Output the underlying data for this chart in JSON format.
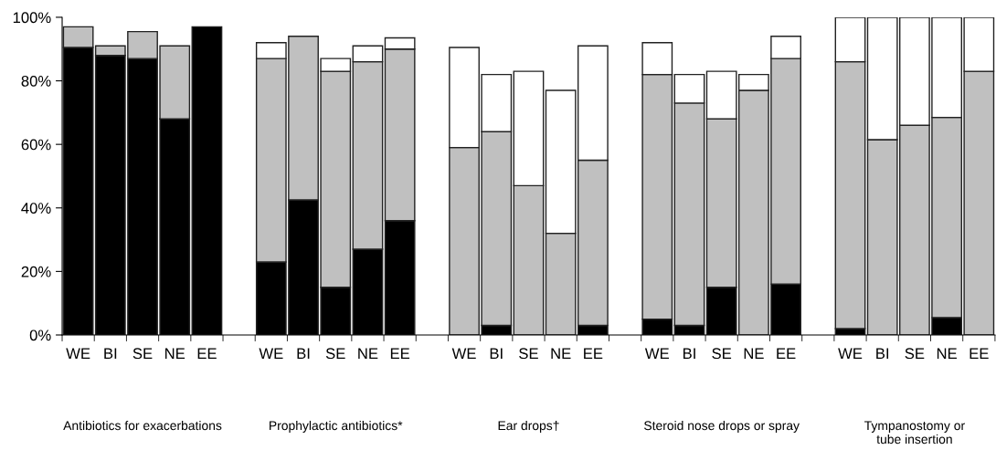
{
  "chart_data": {
    "type": "bar",
    "stacked": true,
    "categories": [
      "WE",
      "BI",
      "SE",
      "NE",
      "EE",
      null,
      "WE",
      "BI",
      "SE",
      "NE",
      "EE",
      null,
      "WE",
      "BI",
      "SE",
      "NE",
      "EE",
      null,
      "WE",
      "BI",
      "SE",
      "NE",
      "EE",
      null,
      "WE",
      "BI",
      "SE",
      "NE",
      "EE"
    ],
    "series": [
      {
        "color": "#000000",
        "values": [
          90.5,
          88,
          87,
          68,
          97,
          null,
          23,
          42.5,
          15,
          27,
          36,
          null,
          0,
          3,
          0,
          0,
          3,
          null,
          5,
          3,
          15,
          0,
          16,
          null,
          2,
          0,
          0,
          5.5,
          0
        ]
      },
      {
        "color": "#c0c0c0",
        "values": [
          6.5,
          3,
          8.5,
          23,
          0,
          null,
          64,
          51.5,
          68,
          59,
          54,
          null,
          59,
          61,
          47,
          32,
          52,
          null,
          77,
          70,
          53,
          77,
          71,
          null,
          84,
          61.5,
          66,
          63,
          83
        ]
      },
      {
        "color": "#ffffff",
        "values": [
          0,
          0,
          0,
          0,
          0,
          null,
          5,
          0,
          4,
          5,
          3.5,
          null,
          31.5,
          18,
          36,
          45,
          36,
          null,
          10,
          9,
          15,
          5,
          7,
          null,
          14,
          38.5,
          34,
          31.5,
          17
        ]
      }
    ],
    "ylim": [
      0,
      100
    ],
    "yticks": [
      {
        "value": 0,
        "label": "0%"
      },
      {
        "value": 20,
        "label": "20%"
      },
      {
        "value": 40,
        "label": "40%"
      },
      {
        "value": 60,
        "label": "60%"
      },
      {
        "value": 80,
        "label": "80%"
      },
      {
        "value": 100,
        "label": "100%"
      }
    ],
    "grid": false,
    "legend": false,
    "annotations": [
      "Antibiotics for exacerbations",
      "Prophylactic antibiotics*",
      "Ear drops†",
      "Steroid nose drops or spray",
      "Tympanostomy or\ntube insertion"
    ]
  }
}
